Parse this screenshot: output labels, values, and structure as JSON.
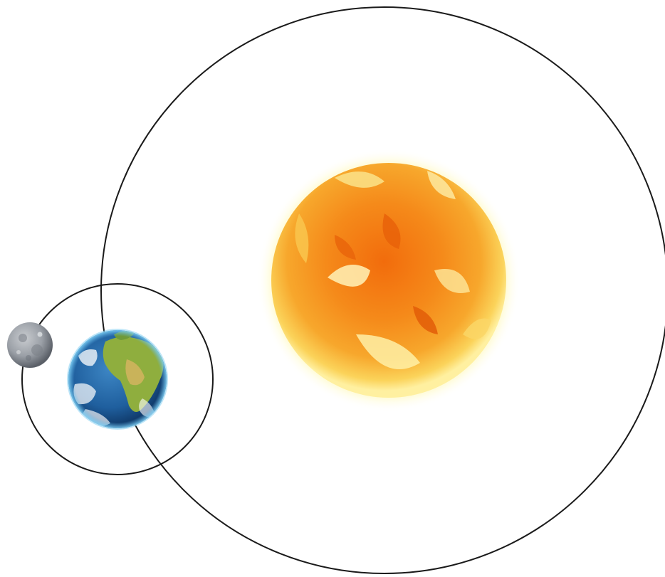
{
  "diagram": {
    "colors": {
      "background": "#ffffff",
      "orbit_stroke": "#1a1a1a",
      "sun_core": "#f07a12",
      "sun_mid": "#f5a524",
      "sun_glow": "#fff6a8",
      "earth_ocean": "#1f5f9e",
      "earth_land": "#8fae3e",
      "moon": "#8a8f96"
    },
    "bodies": [
      {
        "id": "sun",
        "icon": "sun-icon"
      },
      {
        "id": "earth",
        "icon": "earth-icon"
      },
      {
        "id": "moon",
        "icon": "moon-icon"
      }
    ],
    "orbits": [
      {
        "id": "earth-orbit",
        "around": "sun"
      },
      {
        "id": "moon-orbit",
        "around": "earth"
      }
    ]
  }
}
